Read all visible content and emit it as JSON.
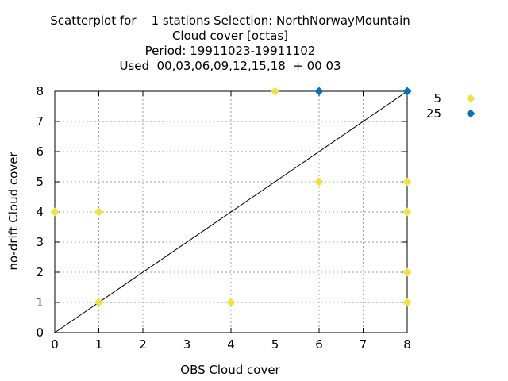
{
  "chart_data": {
    "type": "scatter",
    "title_lines": [
      "Scatterplot for    1 stations Selection: NorthNorwayMountain",
      "Cloud cover [octas]",
      "Period: 19911023-19911102",
      "Used  00,03,06,09,12,15,18  + 00 03"
    ],
    "xlabel": "OBS Cloud cover",
    "ylabel": "no-drift Cloud cover",
    "xlim": [
      0,
      8
    ],
    "ylim": [
      0,
      8
    ],
    "xticks": [
      "0",
      "1",
      "2",
      "3",
      "4",
      "5",
      "6",
      "7",
      "8"
    ],
    "yticks": [
      "0",
      "1",
      "2",
      "3",
      "4",
      "5",
      "6",
      "7",
      "8"
    ],
    "grid": true,
    "diagonal": true,
    "legend_position": "right",
    "series": [
      {
        "name": "5",
        "color": "#f0e040",
        "marker": "diamond",
        "points": [
          {
            "x": 0,
            "y": 4
          },
          {
            "x": 1,
            "y": 4
          },
          {
            "x": 1,
            "y": 1
          },
          {
            "x": 4,
            "y": 1
          },
          {
            "x": 5,
            "y": 8
          },
          {
            "x": 6,
            "y": 5
          },
          {
            "x": 8,
            "y": 5
          },
          {
            "x": 8,
            "y": 4
          },
          {
            "x": 8,
            "y": 2
          },
          {
            "x": 8,
            "y": 1
          }
        ]
      },
      {
        "name": "25",
        "color": "#0872b0",
        "marker": "diamond",
        "points": [
          {
            "x": 6,
            "y": 8
          },
          {
            "x": 8,
            "y": 8
          }
        ]
      }
    ]
  }
}
